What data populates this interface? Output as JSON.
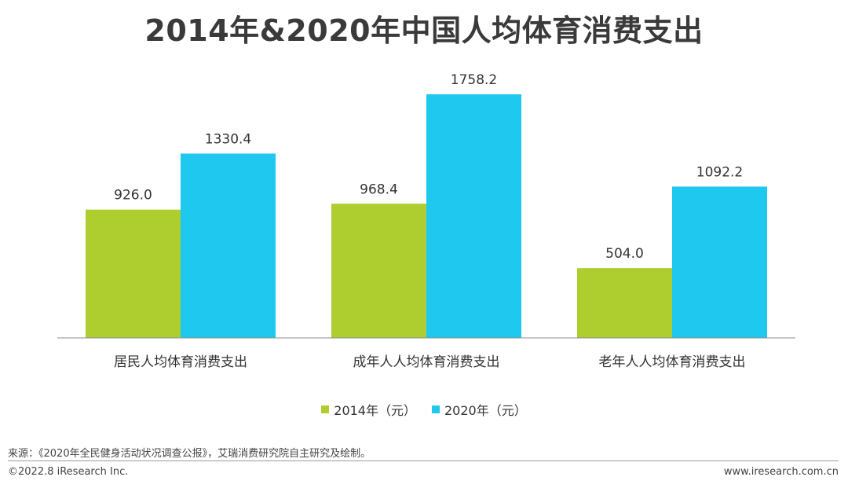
{
  "title": "2014年&2020年中国人均体育消费支出",
  "chart_data": {
    "type": "bar",
    "title": "2014年&2020年中国人均体育消费支出",
    "categories": [
      "居民人均体育消费支出",
      "成年人人均体育消费支出",
      "老年人人均体育消费支出"
    ],
    "series": [
      {
        "name": "2014年（元）",
        "values": [
          926.0,
          968.4,
          504.0
        ],
        "color": "#aecd2f"
      },
      {
        "name": "2020年（元）",
        "values": [
          1330.4,
          1758.2,
          1092.2
        ],
        "color": "#1fc8ef"
      }
    ],
    "value_labels": [
      [
        "926.0",
        "968.4",
        "504.0"
      ],
      [
        "1330.4",
        "1758.2",
        "1092.2"
      ]
    ],
    "xlabel": "",
    "ylabel": "",
    "ylim": [
      0,
      1900
    ],
    "grid": false,
    "legend_position": "bottom"
  },
  "footer": {
    "source": "来源：《2020年全民健身活动状况调查公报》，艾瑞消费研究院自主研究及绘制。",
    "copyright": "©2022.8 iResearch Inc.",
    "website": "www.iresearch.com.cn"
  }
}
